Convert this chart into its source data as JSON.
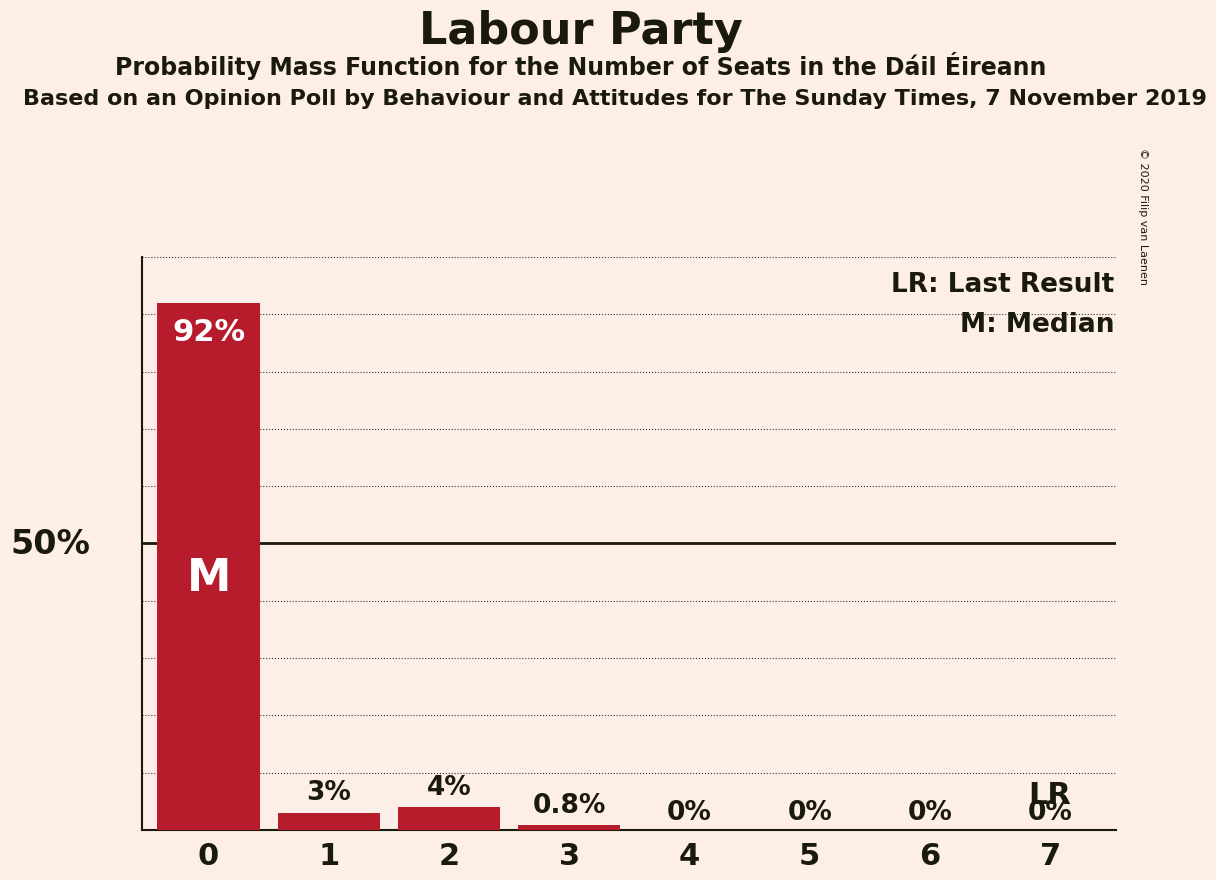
{
  "title": "Labour Party",
  "subtitle": "Probability Mass Function for the Number of Seats in the Dáil Éireann",
  "source_line": "Based on an Opinion Poll by Behaviour and Attitudes for The Sunday Times, 7 November 2019",
  "copyright": "© 2020 Filip van Laenen",
  "categories": [
    0,
    1,
    2,
    3,
    4,
    5,
    6,
    7
  ],
  "values": [
    92,
    3,
    4,
    0.8,
    0,
    0,
    0,
    0
  ],
  "bar_color": "#b71c2c",
  "background_color": "#fdeee8",
  "text_color": "#1a1a0a",
  "median_bar": 0,
  "last_result_bar": 7,
  "ylabel_50": "50%",
  "label_lr": "LR",
  "label_lr_legend": "LR: Last Result",
  "label_m_legend": "M: Median",
  "label_m": "M",
  "ylim": [
    0,
    100
  ],
  "grid_color": "#333333",
  "dotted_grid_levels": [
    10,
    20,
    30,
    40,
    60,
    70,
    80,
    90,
    100
  ],
  "solid_grid_levels": [
    50
  ],
  "bar_labels": [
    "92%",
    "3%",
    "4%",
    "0.8%",
    "0%",
    "0%",
    "0%",
    "0%"
  ]
}
